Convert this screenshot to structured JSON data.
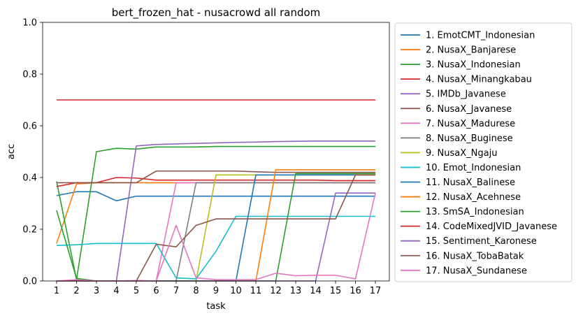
{
  "chart_data": {
    "type": "line",
    "title": "bert_frozen_hat - nusacrowd all random",
    "xlabel": "task",
    "ylabel": "acc",
    "ylim": [
      0.0,
      1.0
    ],
    "x": [
      1,
      2,
      3,
      4,
      5,
      6,
      7,
      8,
      9,
      10,
      11,
      12,
      13,
      14,
      15,
      16,
      17
    ],
    "xticks": [
      "1",
      "2",
      "3",
      "4",
      "5",
      "6",
      "7",
      "8",
      "9",
      "10",
      "11",
      "12",
      "13",
      "14",
      "15",
      "16",
      "17"
    ],
    "yticks": [
      "0.0",
      "0.2",
      "0.4",
      "0.6",
      "0.8",
      "1.0"
    ],
    "grid": false,
    "legend_position": "outside-right",
    "series": [
      {
        "name": "1. EmotCMT_Indonesian",
        "color": "#1f77b4",
        "values": [
          0.33,
          0.345,
          0.345,
          0.31,
          0.328,
          0.328,
          0.328,
          0.328,
          0.328,
          0.328,
          0.328,
          0.328,
          0.328,
          0.328,
          0.328,
          0.328,
          0.328
        ]
      },
      {
        "name": "2. NusaX_Banjarese",
        "color": "#ff7f0e",
        "values": [
          0.145,
          0.375,
          0.38,
          0.38,
          0.38,
          0.38,
          0.38,
          0.38,
          0.38,
          0.38,
          0.38,
          0.38,
          0.38,
          0.38,
          0.38,
          0.38,
          0.38
        ]
      },
      {
        "name": "3. NusaX_Indonesian",
        "color": "#2ca02c",
        "values": [
          0.385,
          0.005,
          0.5,
          0.513,
          0.51,
          0.518,
          0.518,
          0.518,
          0.52,
          0.52,
          0.52,
          0.52,
          0.52,
          0.52,
          0.52,
          0.52,
          0.52
        ]
      },
      {
        "name": "4. NusaX_Minangkabau",
        "color": "#d62728",
        "values": [
          0.365,
          0.38,
          0.38,
          0.4,
          0.398,
          0.39,
          0.39,
          0.39,
          0.39,
          0.39,
          0.39,
          0.39,
          0.39,
          0.39,
          0.388,
          0.388,
          0.388
        ]
      },
      {
        "name": "5. IMDb_Javanese",
        "color": "#9467bd",
        "values": [
          0.0,
          0.0,
          0.0,
          0.0,
          0.522,
          0.528,
          0.53,
          0.532,
          0.534,
          0.536,
          0.537,
          0.539,
          0.54,
          0.541,
          0.541,
          0.541,
          0.541
        ]
      },
      {
        "name": "6. NusaX_Javanese",
        "color": "#8c564b",
        "values": [
          0.38,
          0.38,
          0.38,
          0.38,
          0.38,
          0.425,
          0.425,
          0.425,
          0.425,
          0.425,
          0.422,
          0.42,
          0.42,
          0.42,
          0.42,
          0.42,
          0.42
        ]
      },
      {
        "name": "7. NusaX_Madurese",
        "color": "#e377c2",
        "values": [
          0.0,
          0.0,
          0.0,
          0.0,
          0.0,
          0.0,
          0.38,
          0.38,
          0.38,
          0.38,
          0.38,
          0.38,
          0.38,
          0.38,
          0.38,
          0.38,
          0.38
        ]
      },
      {
        "name": "8. NusaX_Buginese",
        "color": "#7f7f7f",
        "values": [
          0.0,
          0.0,
          0.0,
          0.0,
          0.0,
          0.0,
          0.0,
          0.38,
          0.38,
          0.38,
          0.38,
          0.38,
          0.38,
          0.38,
          0.38,
          0.38,
          0.38
        ]
      },
      {
        "name": "9. NusaX_Ngaju",
        "color": "#bcbd22",
        "values": [
          0.0,
          0.0,
          0.0,
          0.0,
          0.0,
          0.0,
          0.0,
          0.0,
          0.41,
          0.41,
          0.41,
          0.41,
          0.41,
          0.41,
          0.41,
          0.41,
          0.41
        ]
      },
      {
        "name": "10. Emot_Indonesian",
        "color": "#17becf",
        "values": [
          0.137,
          0.14,
          0.145,
          0.145,
          0.145,
          0.145,
          0.012,
          0.008,
          0.115,
          0.25,
          0.25,
          0.25,
          0.25,
          0.25,
          0.25,
          0.25,
          0.25
        ]
      },
      {
        "name": "11. NusaX_Balinese",
        "color": "#1f77b4",
        "values": [
          0.0,
          0.0,
          0.0,
          0.0,
          0.0,
          0.0,
          0.0,
          0.0,
          0.0,
          0.0,
          0.41,
          0.41,
          0.41,
          0.41,
          0.41,
          0.41,
          0.41
        ]
      },
      {
        "name": "12. NusaX_Acehnese",
        "color": "#ff7f0e",
        "values": [
          0.0,
          0.0,
          0.0,
          0.0,
          0.0,
          0.0,
          0.0,
          0.0,
          0.0,
          0.0,
          0.0,
          0.43,
          0.43,
          0.43,
          0.43,
          0.43,
          0.43
        ]
      },
      {
        "name": "13. SmSA_Indonesian",
        "color": "#2ca02c",
        "values": [
          0.273,
          0.01,
          0.0,
          0.0,
          0.0,
          0.0,
          0.0,
          0.0,
          0.0,
          0.0,
          0.0,
          0.0,
          0.415,
          0.415,
          0.415,
          0.415,
          0.415
        ]
      },
      {
        "name": "14. CodeMixedJVID_Javanese",
        "color": "#d62728",
        "values": [
          0.7,
          0.7,
          0.7,
          0.7,
          0.7,
          0.7,
          0.7,
          0.7,
          0.7,
          0.7,
          0.7,
          0.7,
          0.7,
          0.7,
          0.7,
          0.7,
          0.7
        ]
      },
      {
        "name": "15. Sentiment_Karonese",
        "color": "#9467bd",
        "values": [
          0.0,
          0.0,
          0.0,
          0.0,
          0.0,
          0.0,
          0.0,
          0.0,
          0.0,
          0.0,
          0.0,
          0.0,
          0.0,
          0.0,
          0.34,
          0.34,
          0.34
        ]
      },
      {
        "name": "16. NusaX_TobaBatak",
        "color": "#8c564b",
        "values": [
          0.0,
          0.0,
          0.0,
          0.0,
          0.0,
          0.142,
          0.132,
          0.215,
          0.24,
          0.24,
          0.24,
          0.24,
          0.24,
          0.24,
          0.24,
          0.41,
          0.41
        ]
      },
      {
        "name": "17. NusaX_Sundanese",
        "color": "#e377c2",
        "values": [
          0.0,
          0.005,
          0.0,
          0.0,
          0.002,
          0.0,
          0.215,
          0.012,
          0.005,
          0.005,
          0.005,
          0.03,
          0.02,
          0.022,
          0.022,
          0.008,
          0.34
        ]
      }
    ]
  }
}
